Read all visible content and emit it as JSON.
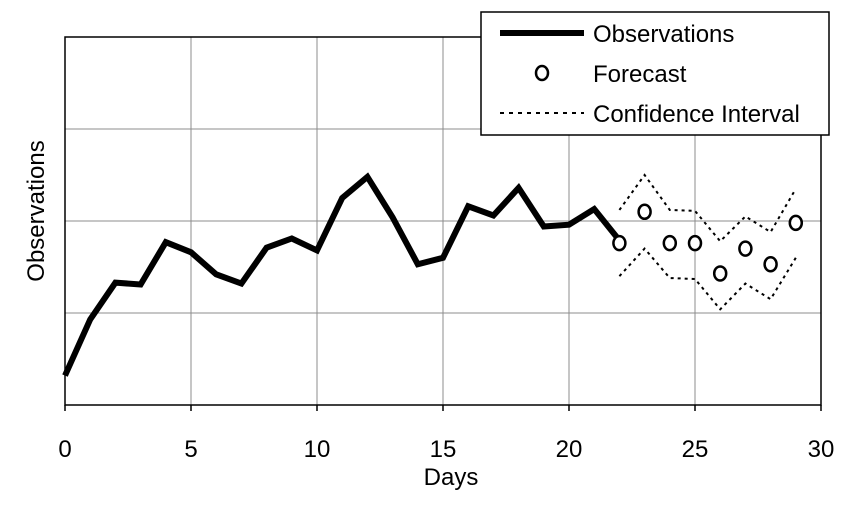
{
  "chart_data": {
    "type": "line",
    "xlabel": "Days",
    "ylabel": "Observations",
    "xlim": [
      0,
      30
    ],
    "ylim": [
      0,
      4
    ],
    "x_ticks": [
      0,
      5,
      10,
      15,
      20,
      25,
      30
    ],
    "x_tick_labels": [
      "0",
      "5",
      "10",
      "15",
      "20",
      "25",
      "30"
    ],
    "y_gridlines": [
      1,
      2,
      3,
      4
    ],
    "grid": true,
    "legend_position": "top-right",
    "series": [
      {
        "name": "Observations",
        "style": "thick-solid",
        "x": [
          0,
          1,
          2,
          3,
          4,
          5,
          6,
          7,
          8,
          9,
          10,
          11,
          12,
          13,
          14,
          15,
          16,
          17,
          18,
          19,
          20,
          21,
          22
        ],
        "y": [
          0.32,
          0.93,
          1.33,
          1.31,
          1.77,
          1.66,
          1.42,
          1.32,
          1.71,
          1.81,
          1.68,
          2.25,
          2.48,
          2.04,
          1.53,
          1.6,
          2.16,
          2.06,
          2.36,
          1.94,
          1.96,
          2.13,
          1.79
        ]
      },
      {
        "name": "Forecast",
        "style": "open-circle",
        "x": [
          22,
          23,
          24,
          25,
          26,
          27,
          28,
          29
        ],
        "y": [
          1.76,
          2.1,
          1.76,
          1.76,
          1.43,
          1.7,
          1.53,
          1.98
        ]
      },
      {
        "name": "Confidence Interval",
        "style": "dotted",
        "upper": {
          "x": [
            22,
            23,
            24,
            25,
            26,
            27,
            28,
            29
          ],
          "y": [
            2.12,
            2.5,
            2.12,
            2.11,
            1.78,
            2.05,
            1.88,
            2.35
          ]
        },
        "lower": {
          "x": [
            22,
            23,
            24,
            25,
            26,
            27,
            28,
            29
          ],
          "y": [
            1.4,
            1.7,
            1.38,
            1.37,
            1.04,
            1.32,
            1.15,
            1.6
          ]
        }
      }
    ]
  }
}
